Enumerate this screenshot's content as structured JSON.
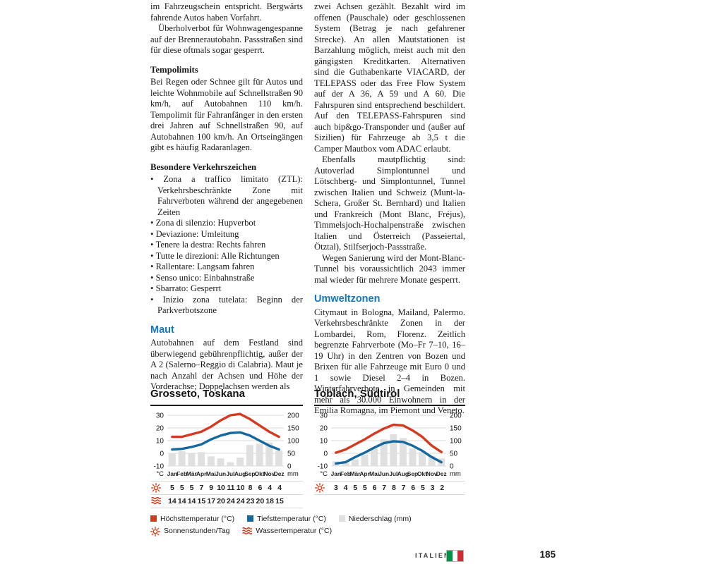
{
  "article": {
    "col1": {
      "p1": "im Fahrzeugschein entspricht. Bergwärts fahrende Autos haben Vorfahrt.",
      "p2": "Überholverbot für Wohnwagengespanne auf der Brennerautobahn. Passstraßen sind für diese oftmals sogar gesperrt.",
      "h_tempolimits": "Tempolimits",
      "p3": "Bei Regen oder Schnee gilt für Autos und leichte Wohnmobile auf Schnellstraßen 90 km/h, auf Autobahnen 110 km/h. Tempolimit für Fahranfänger in den ersten drei Jahren auf Schnellstraßen 90, auf Autobahnen 100 km/h. An Ortseingängen gibt es häufig Radaranlagen.",
      "h_verkehrszeichen": "Besondere Verkehrszeichen",
      "bullets": [
        "Zona a traffico limitato (ZTL): Verkehrsbeschränkte Zone mit Fahrverboten während der angegebenen Zeiten",
        "Zona di silenzio: Hupverbot",
        "Deviazione: Umleitung",
        "Tenere la destra: Rechts fahren",
        "Tutte le direzioni: Alle Richtungen",
        "Rallentare: Langsam fahren",
        "Senso unico: Einbahnstraße",
        "Sbarrato: Gesperrt",
        "Inizio zona tutelata: Beginn der Parkverbotszone"
      ],
      "h_maut": "Maut",
      "p4": "Autobahnen auf dem Festland sind überwiegend gebührenpflichtig, außer der A 2 (Salerno–Reggio di Calabria). Maut je nach Anzahl der Achsen und Höhe der Vorderachse; Doppelachsen werden als"
    },
    "col2": {
      "p1": "zwei Achsen gezählt. Bezahlt wird im offenen (Pauschale) oder geschlossenen System (Betrag je nach gefahrener Strecke). An allen Mautstationen ist Barzahlung möglich, meist auch mit den gängigsten Kreditkarten. Alternativen sind die Guthabenkarte VIACARD, der TELEPASS oder das Free Flow System auf der A 36, A 59 und A 60. Die Fahrspuren sind entsprechend beschildert. Auf den TELEPASS-Fahrspuren sind auch bip&go-Transponder und (außer auf Sizilien) für Fahrzeuge ab 3,5 t die Camper Mautbox vom ADAC erlaubt.",
      "p2": "Ebenfalls mautpflichtig sind: Autoverlad Simplontunnel und Lötschberg- und Simplontunnel, Tunnel zwischen Italien und Schweiz (Munt-la-Schera, Großer St. Bernhard) und Italien und Frankreich (Mont Blanc, Fréjus), Timmelsjoch-Hochalpenstraße zwischen Italien und Österreich (Passeiertal, Ötztal), Stilfserjoch-Passstraße.",
      "p3": "Wegen Sanierung wird der Mont-Blanc-Tunnel bis voraussichtlich 2043 immer mal wieder für mehrere Monate gesperrt.",
      "h_umweltzonen": "Umweltzonen",
      "p4": "Citymaut in Bologna, Mailand, Palermo. Verkehrsbeschränkte Zonen in der Lombardei, Rom, Florenz. Zeitlich begrenzte Fahrverbote (Mo–Fr 7–10, 16–19 Uhr) in den Zentren von Bozen und Brixen für alle Fahrzeuge mit Euro 0 und 1 sowie Diesel 2–4 in Bozen. Winterfahrverbote in Gemeinden mit mehr als 30.000 Einwohnern in der Emilia Romagna, im Piemont und Veneto."
    }
  },
  "chart_data": [
    {
      "type": "line+bar",
      "title": "Grosseto, Toskana",
      "months": [
        "Jan",
        "Feb",
        "Mär",
        "Apr",
        "Mai",
        "Jun",
        "Jul",
        "Aug",
        "Sep",
        "Okt",
        "Nov",
        "Dez"
      ],
      "left_axis": {
        "label": "°C",
        "min": -10,
        "max": 30,
        "ticks": [
          30,
          20,
          10,
          0,
          -10
        ]
      },
      "right_axis": {
        "label": "mm",
        "min": 0,
        "max": 200,
        "ticks": [
          200,
          150,
          100,
          50,
          0
        ]
      },
      "grid": true,
      "series": [
        {
          "name": "Niederschlag (mm)",
          "type": "bar",
          "axis": "right",
          "color": "#e0e0e0",
          "values": [
            48,
            58,
            50,
            55,
            38,
            30,
            15,
            33,
            83,
            88,
            93,
            60
          ]
        },
        {
          "name": "Höchsttemperatur (°C)",
          "type": "line",
          "axis": "left",
          "color": "#d43a20",
          "values": [
            13,
            13,
            15,
            17,
            21,
            26,
            30,
            31,
            27,
            22,
            17,
            13
          ]
        },
        {
          "name": "Tiefsttemperatur (°C)",
          "type": "line",
          "axis": "left",
          "color": "#15689e",
          "values": [
            3,
            3.5,
            5,
            7,
            11,
            14,
            16,
            16.5,
            14,
            10,
            6,
            3
          ]
        }
      ],
      "rows": [
        {
          "icon": "sun-icon",
          "name": "Sonnenstunden/Tag",
          "values": [
            5,
            5,
            5,
            7,
            9,
            10,
            11,
            10,
            8,
            6,
            4,
            4
          ]
        },
        {
          "icon": "waves-icon",
          "name": "Wassertemperatur (°C)",
          "values": [
            14,
            14,
            14,
            15,
            17,
            20,
            24,
            24,
            23,
            20,
            18,
            15
          ]
        }
      ]
    },
    {
      "type": "line+bar",
      "title": "Toblach, Südtirol",
      "months": [
        "Jan",
        "Feb",
        "Mär",
        "Apr",
        "Mai",
        "Jun",
        "Jul",
        "Aug",
        "Sep",
        "Okt",
        "Nov",
        "Dez"
      ],
      "left_axis": {
        "label": "°C",
        "min": -10,
        "max": 30,
        "ticks": [
          30,
          20,
          10,
          0,
          -10
        ]
      },
      "right_axis": {
        "label": "mm",
        "min": 0,
        "max": 200,
        "ticks": [
          200,
          150,
          100,
          50,
          0
        ]
      },
      "grid": true,
      "series": [
        {
          "name": "Niederschlag (mm)",
          "type": "bar",
          "axis": "right",
          "color": "#e0e0e0",
          "values": [
            18,
            14,
            25,
            45,
            70,
            105,
            125,
            110,
            70,
            55,
            40,
            30
          ]
        },
        {
          "name": "Höchsttemperatur (°C)",
          "type": "line",
          "axis": "left",
          "color": "#d43a20",
          "values": [
            0.5,
            3,
            7,
            11,
            15.5,
            19.5,
            22.5,
            22,
            18,
            13,
            6,
            1
          ]
        },
        {
          "name": "Tiefsttemperatur (°C)",
          "type": "line",
          "axis": "left",
          "color": "#15689e",
          "values": [
            -8,
            -7,
            -3,
            0.5,
            4.5,
            8,
            9.5,
            9,
            6,
            2,
            -3,
            -7
          ]
        }
      ],
      "rows": [
        {
          "icon": "sun-icon",
          "name": "Sonnenstunden/Tag",
          "values": [
            3,
            4,
            5,
            5,
            6,
            7,
            8,
            7,
            6,
            5,
            3,
            2
          ]
        }
      ]
    }
  ],
  "legend": {
    "items": [
      {
        "icon": "red-square",
        "label": "Höchsttemperatur (°C)"
      },
      {
        "icon": "blue-square",
        "label": "Tiefsttemperatur (°C)"
      },
      {
        "icon": "gray-square",
        "label": "Niederschlag (mm)"
      },
      {
        "icon": "sun-icon",
        "label": "Sonnenstunden/Tag"
      },
      {
        "icon": "waves-icon",
        "label": "Wassertemperatur (°C)"
      }
    ]
  },
  "footer": {
    "section": "ITALIEN",
    "page_number": "185"
  },
  "colors": {
    "accent_blue": "#1478bd",
    "line_red": "#d43a20",
    "line_blue": "#15689e",
    "bar_gray": "#e0e0e0",
    "flag_green": "#009246",
    "flag_white": "#ffffff",
    "flag_red": "#ce2b37"
  }
}
